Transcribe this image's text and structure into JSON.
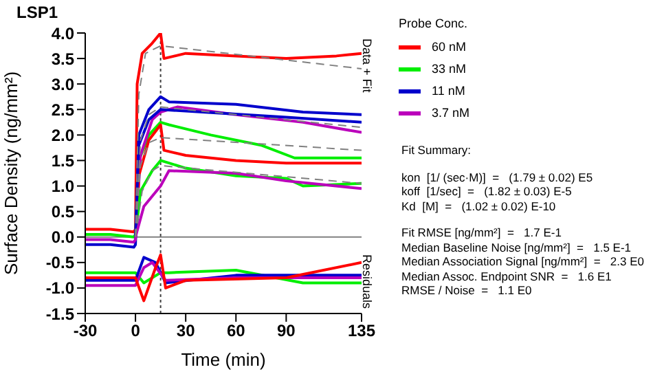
{
  "chart_data": {
    "type": "line",
    "title": "LSP1",
    "xlabel": "Time (min)",
    "ylabel": "Surface Density (ng/mm²)",
    "legend_title": "Probe Conc.",
    "legend": "right",
    "marker": "none",
    "line_style": "solid",
    "xlim": [
      -30,
      135
    ],
    "xticks": [
      -30,
      0,
      30,
      60,
      90,
      135
    ],
    "ylim": [
      -1.5,
      4.0
    ],
    "yticks": [
      -1.5,
      {
        "value": -1,
        "label": "-1.0"
      },
      -0.5,
      {
        "value": 0,
        "label": "0.0"
      },
      0.5,
      {
        "value": 1,
        "label": "1.0"
      },
      1.5,
      {
        "value": 2,
        "label": "2.0"
      },
      2.5,
      {
        "value": 3,
        "label": "3.0"
      },
      3.5,
      {
        "value": 4,
        "label": "4.0"
      }
    ],
    "ref_lines": [
      {
        "axis": "y",
        "value": 0,
        "color": "#808080",
        "line_style": "solid"
      },
      {
        "axis": "x",
        "value": 15,
        "color": "#404040",
        "line_style": "dotted"
      }
    ],
    "annotations": [
      "Data + Fit",
      "Residuals",
      "Fit Summary:",
      "kon  [1/ (sec·M)]  =   (1.79 ± 0.02) E5",
      "koff  [1/sec]  =   (1.82 ± 0.03) E-5",
      "Kd  [M]  =   (1.02 ± 0.02) E-10",
      "Fit RMSE [ng/mm²]  =   1.7 E-1",
      "Median Baseline Noise [ng/mm²]  =   1.5 E-1",
      "Median Association Signal [ng/mm²]  =   2.3 E0",
      "Median Assoc. Endpoint SNR  =   1.6 E1",
      "RMSE / Noise  =   1.1 E0"
    ],
    "series": [
      {
        "name": "60 nM",
        "color": "#ff0000",
        "x": [
          -30,
          -15,
          -1,
          0,
          1,
          4,
          10,
          15,
          17,
          30,
          60,
          90,
          120,
          135
        ],
        "values": [
          0.15,
          0.15,
          0.1,
          0.15,
          3.0,
          3.6,
          3.8,
          4.0,
          3.5,
          3.6,
          3.55,
          3.5,
          3.55,
          3.6
        ]
      },
      {
        "name": "33 nM",
        "color": "#00ee00",
        "x": [
          -30,
          -15,
          -1,
          0,
          2,
          8,
          15,
          20,
          45,
          75,
          95,
          135
        ],
        "values": [
          0.05,
          0.05,
          0.0,
          0.05,
          1.5,
          2.0,
          2.25,
          2.2,
          2.0,
          1.8,
          1.55,
          1.55
        ]
      },
      {
        "name": "11 nM",
        "color": "#0000cc",
        "x": [
          -30,
          -15,
          -1,
          0,
          2,
          8,
          15,
          20,
          60,
          100,
          135
        ],
        "values": [
          -0.15,
          -0.15,
          -0.2,
          -0.15,
          2.0,
          2.5,
          2.75,
          2.65,
          2.6,
          2.45,
          2.4
        ]
      },
      {
        "name": "3.7 nM",
        "color": "#bb00bb",
        "x": [
          -30,
          -15,
          -1,
          0,
          3,
          10,
          15,
          25,
          60,
          100,
          135
        ],
        "values": [
          -0.05,
          -0.05,
          -0.1,
          -0.05,
          1.6,
          2.3,
          2.45,
          2.55,
          2.4,
          2.25,
          2.05
        ]
      },
      {
        "color": "#ff0000",
        "x": [
          0,
          2,
          8,
          15,
          17,
          30,
          60,
          90,
          135
        ],
        "values": [
          0.0,
          1.2,
          1.9,
          2.2,
          1.7,
          1.6,
          1.5,
          1.45,
          1.45
        ]
      },
      {
        "color": "#00ee00",
        "x": [
          0,
          3,
          10,
          15,
          30,
          60,
          90,
          100,
          135
        ],
        "values": [
          0.0,
          0.9,
          1.3,
          1.5,
          1.35,
          1.2,
          1.15,
          1.0,
          1.05
        ]
      },
      {
        "color": "#0000cc",
        "x": [
          0,
          2,
          8,
          15,
          40,
          90,
          135
        ],
        "values": [
          0.0,
          1.8,
          2.3,
          2.5,
          2.45,
          2.35,
          2.25
        ]
      },
      {
        "color": "#bb00bb",
        "x": [
          0,
          5,
          15,
          20,
          60,
          90,
          135
        ],
        "values": [
          0.0,
          0.6,
          1.0,
          1.3,
          1.25,
          1.1,
          0.95
        ]
      },
      {
        "color": "#808080",
        "line_style": "dashed",
        "x": [
          0,
          2,
          6,
          15,
          135
        ],
        "values": [
          0.0,
          2.8,
          3.6,
          3.75,
          3.3
        ]
      },
      {
        "color": "#808080",
        "line_style": "dashed",
        "x": [
          0,
          3,
          8,
          15,
          135
        ],
        "values": [
          0.0,
          1.9,
          2.4,
          2.55,
          2.15
        ]
      },
      {
        "color": "#808080",
        "line_style": "dashed",
        "x": [
          0,
          3,
          8,
          15,
          135
        ],
        "values": [
          0.0,
          1.4,
          1.85,
          1.95,
          1.7
        ]
      },
      {
        "color": "#808080",
        "line_style": "dashed",
        "x": [
          0,
          4,
          10,
          15,
          135
        ],
        "values": [
          0.0,
          0.9,
          1.3,
          1.4,
          1.05
        ]
      },
      {
        "color": "#00ee00",
        "x": [
          -30,
          0,
          5,
          15,
          20,
          60,
          100,
          135
        ],
        "values": [
          -0.7,
          -0.7,
          -0.9,
          -0.7,
          -0.7,
          -0.65,
          -0.9,
          -0.9
        ]
      },
      {
        "color": "#0000cc",
        "x": [
          -30,
          0,
          5,
          12,
          18,
          60,
          135
        ],
        "values": [
          -0.85,
          -0.85,
          -0.4,
          -0.5,
          -0.9,
          -0.75,
          -0.75
        ]
      },
      {
        "color": "#bb00bb",
        "x": [
          -30,
          0,
          5,
          10,
          18,
          60,
          135
        ],
        "values": [
          -0.95,
          -0.95,
          -0.6,
          -0.5,
          -0.85,
          -0.8,
          -0.8
        ]
      },
      {
        "color": "#ff0000",
        "x": [
          -30,
          0,
          5,
          12,
          15,
          18,
          30,
          90,
          135
        ],
        "values": [
          -0.8,
          -0.8,
          -1.25,
          -0.6,
          -0.35,
          -1.0,
          -0.85,
          -0.8,
          -0.5
        ]
      }
    ]
  }
}
